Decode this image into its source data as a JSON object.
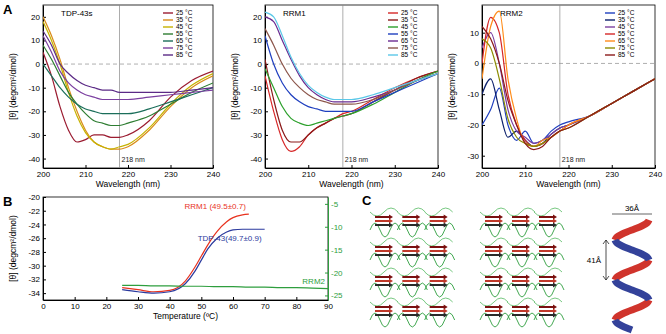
{
  "chart_data": [
    {
      "type": "line",
      "panel": "A",
      "title": "TDP-43s",
      "x_label": "Wavelength (nm)",
      "y_label": "[θ] (degcm²/dmol)",
      "x": [
        200,
        202,
        204,
        206,
        208,
        210,
        212,
        214,
        216,
        218,
        220,
        225,
        230,
        235,
        240
      ],
      "xlim": [
        200,
        240
      ],
      "xticks": [
        200,
        210,
        220,
        230,
        240
      ],
      "ylim": [
        -44,
        25
      ],
      "yticks": [
        20,
        10,
        0,
        -10,
        -20,
        -30,
        -40
      ],
      "legend": "upper right",
      "annotations": [
        {
          "x": 218,
          "text": "218 nm"
        },
        {
          "y": 0,
          "line_style": "dashed"
        }
      ],
      "series": [
        {
          "name": "25 °C",
          "color": "#9b1c31",
          "values": [
            5,
            -5,
            -18,
            -28,
            -33,
            -32,
            -30,
            -30,
            -31,
            -31,
            -30,
            -24,
            -14,
            -7,
            -3
          ]
        },
        {
          "name": "35 °C",
          "color": "#d98c1a",
          "values": [
            20,
            12,
            2,
            -10,
            -20,
            -28,
            -33,
            -35,
            -36,
            -36,
            -35,
            -28,
            -18,
            -10,
            -5
          ]
        },
        {
          "name": "45 °C",
          "color": "#c6b200",
          "values": [
            18,
            10,
            0,
            -12,
            -22,
            -29,
            -33,
            -35,
            -36,
            -35,
            -34,
            -27,
            -17,
            -9,
            -4
          ]
        },
        {
          "name": "55 °C",
          "color": "#2e7d32",
          "values": [
            8,
            2,
            -5,
            -12,
            -17,
            -21,
            -24,
            -25,
            -26,
            -26,
            -25,
            -22,
            -17,
            -12,
            -8
          ]
        },
        {
          "name": "65 °C",
          "color": "#1b6e5a",
          "values": [
            0,
            -5,
            -10,
            -14,
            -17,
            -19,
            -20,
            -21,
            -21,
            -21,
            -21,
            -19,
            -16,
            -13,
            -10
          ]
        },
        {
          "name": "75 °C",
          "color": "#7b3fa0",
          "values": [
            12,
            5,
            -3,
            -8,
            -11,
            -13,
            -14,
            -15,
            -15,
            -15,
            -15,
            -14,
            -13,
            -12,
            -11
          ]
        },
        {
          "name": "85 °C",
          "color": "#5b2a86",
          "values": [
            14,
            8,
            0,
            -4,
            -7,
            -9,
            -10,
            -11,
            -11,
            -12,
            -12,
            -12,
            -12,
            -11,
            -10
          ]
        }
      ]
    },
    {
      "type": "line",
      "title": "RRM1",
      "x_label": "Wavelength (nm)",
      "y_label": "[θ] (degcm²/dmol)",
      "x": [
        200,
        202,
        204,
        206,
        208,
        210,
        212,
        214,
        216,
        218,
        220,
        225,
        230,
        235,
        240
      ],
      "xlim": [
        200,
        240
      ],
      "xticks": [
        200,
        210,
        220,
        230,
        240
      ],
      "ylim": [
        -44,
        25
      ],
      "yticks": [
        20,
        10,
        0,
        -10,
        -20,
        -30,
        -40
      ],
      "legend": "upper right",
      "annotations": [
        {
          "x": 218,
          "text": "218 nm"
        },
        {
          "y": 0,
          "line_style": "dashed"
        }
      ],
      "series": [
        {
          "name": "25 °C",
          "color": "#d62728",
          "values": [
            -5,
            -20,
            -32,
            -37,
            -35,
            -30,
            -27,
            -25,
            -23,
            -21,
            -20,
            -15,
            -10,
            -6,
            -3
          ]
        },
        {
          "name": "35 °C",
          "color": "#8b1a1a",
          "values": [
            2,
            -15,
            -28,
            -33,
            -33,
            -30,
            -27,
            -25,
            -23,
            -22,
            -21,
            -16,
            -11,
            -6,
            -3
          ]
        },
        {
          "name": "45 °C",
          "color": "#2ca02c",
          "values": [
            -2,
            -10,
            -18,
            -23,
            -25,
            -26,
            -25,
            -24,
            -23,
            -22,
            -21,
            -17,
            -12,
            -7,
            -3
          ]
        },
        {
          "name": "55 °C",
          "color": "#1f3fbf",
          "values": [
            12,
            0,
            -8,
            -13,
            -16,
            -18,
            -19,
            -20,
            -20,
            -20,
            -20,
            -16,
            -12,
            -8,
            -4
          ]
        },
        {
          "name": "65 °C",
          "color": "#6a2c91",
          "values": [
            20,
            18,
            10,
            2,
            -5,
            -10,
            -13,
            -15,
            -16,
            -16,
            -16,
            -14,
            -11,
            -7,
            -4
          ]
        },
        {
          "name": "75 °C",
          "color": "#8c564b",
          "values": [
            15,
            8,
            0,
            -6,
            -10,
            -13,
            -15,
            -16,
            -17,
            -17,
            -17,
            -15,
            -11,
            -7,
            -4
          ]
        },
        {
          "name": "85 °C",
          "color": "#5bc8e8",
          "values": [
            22,
            20,
            12,
            3,
            -4,
            -9,
            -12,
            -14,
            -15,
            -15,
            -15,
            -13,
            -10,
            -7,
            -4
          ]
        }
      ]
    },
    {
      "type": "line",
      "title": "RRM2",
      "x_label": "Wavelength (nm)",
      "y_label": "[θ] (degcm²/dmol)",
      "x": [
        200,
        202,
        204,
        206,
        208,
        210,
        212,
        214,
        216,
        218,
        220,
        225,
        230,
        235,
        240
      ],
      "xlim": [
        200,
        240
      ],
      "xticks": [
        200,
        210,
        220,
        230,
        240
      ],
      "ylim": [
        -34,
        19
      ],
      "yticks": [
        10,
        0,
        -10,
        -20,
        -30
      ],
      "legend": "upper right",
      "annotations": [
        {
          "x": 218,
          "text": "218 nm"
        },
        {
          "y": 0,
          "line_style": "dashed"
        }
      ],
      "series": [
        {
          "name": "25 °C",
          "color": "#1f3fbf",
          "values": [
            -20,
            -15,
            -8,
            -20,
            -25,
            -22,
            -26,
            -25,
            -22,
            -20,
            -19,
            -17,
            -13,
            -9,
            -5
          ]
        },
        {
          "name": "35 °C",
          "color": "#0b1f6b",
          "values": [
            -10,
            -5,
            -15,
            -24,
            -22,
            -25,
            -27,
            -26,
            -23,
            -21,
            -20,
            -17,
            -13,
            -9,
            -5
          ]
        },
        {
          "name": "45 °C",
          "color": "#7b3fa0",
          "values": [
            5,
            10,
            0,
            -15,
            -22,
            -24,
            -26,
            -25,
            -23,
            -21,
            -20,
            -17,
            -13,
            -9,
            -5
          ]
        },
        {
          "name": "55 °C",
          "color": "#d62728",
          "values": [
            0,
            15,
            10,
            -10,
            -20,
            -25,
            -27,
            -26,
            -24,
            -22,
            -20,
            -17,
            -13,
            -9,
            -5
          ]
        },
        {
          "name": "65 °C",
          "color": "#ff8c1a",
          "values": [
            -5,
            12,
            17,
            -5,
            -18,
            -26,
            -27,
            -25,
            -24,
            -22,
            -20,
            -17,
            -13,
            -9,
            -5
          ]
        },
        {
          "name": "75 °C",
          "color": "#8b8b00",
          "values": [
            8,
            5,
            -5,
            -18,
            -24,
            -26,
            -27,
            -26,
            -24,
            -22,
            -21,
            -17,
            -13,
            -9,
            -5
          ]
        },
        {
          "name": "85 °C",
          "color": "#8b1a1a",
          "values": [
            12,
            8,
            0,
            -12,
            -20,
            -26,
            -28,
            -27,
            -24,
            -22,
            -21,
            -17,
            -13,
            -9,
            -5
          ]
        }
      ]
    },
    {
      "type": "line",
      "panel": "B",
      "x_label": "Temperature (ºC)",
      "y_label": "[θ] (degcm²/dmol)",
      "xlim": [
        0,
        90
      ],
      "xticks": [
        0,
        10,
        20,
        30,
        40,
        50,
        60,
        70,
        80,
        90
      ],
      "ylim": [
        -35,
        -20
      ],
      "yticks": [
        -20,
        -22,
        -24,
        -26,
        -28,
        -30,
        -32,
        -34
      ],
      "y2lim": [
        -26,
        -3.5
      ],
      "y2ticks": [
        -5,
        -10,
        -15,
        -20,
        -25
      ],
      "series": [
        {
          "name": "RRM1 (49.5±0.7)",
          "color": "#e8321e",
          "x": [
            25,
            30,
            35,
            40,
            45,
            48,
            50,
            52,
            55,
            58,
            60,
            63,
            65
          ],
          "values": [
            -33.2,
            -33.5,
            -33.8,
            -33.6,
            -32.2,
            -30.2,
            -28.6,
            -27,
            -25,
            -23.6,
            -23,
            -22.6,
            -22.5
          ]
        },
        {
          "name": "TDP-43(49.7±0.9)",
          "color": "#2b3a9e",
          "x": [
            25,
            30,
            35,
            40,
            45,
            48,
            50,
            52,
            55,
            58,
            60,
            63,
            65,
            70
          ],
          "values": [
            -33.5,
            -33.8,
            -34,
            -33.8,
            -32.6,
            -30.8,
            -29.2,
            -27.6,
            -26,
            -25.1,
            -24.8,
            -24.7,
            -24.7,
            -24.7
          ]
        },
        {
          "name": "RRM2",
          "color": "#2e9e3e",
          "axis": "y2",
          "x": [
            25,
            30,
            35,
            40,
            45,
            50,
            55,
            60,
            65,
            70,
            75,
            80,
            85,
            90
          ],
          "values": [
            -22.8,
            -22.8,
            -22.9,
            -22.9,
            -23,
            -23,
            -23.1,
            -23.1,
            -23.2,
            -23.2,
            -23.3,
            -23.3,
            -23.4,
            -23.5
          ]
        }
      ]
    }
  ],
  "diagram": {
    "panel": "C",
    "labels": [
      "36Å",
      "41Å"
    ]
  }
}
